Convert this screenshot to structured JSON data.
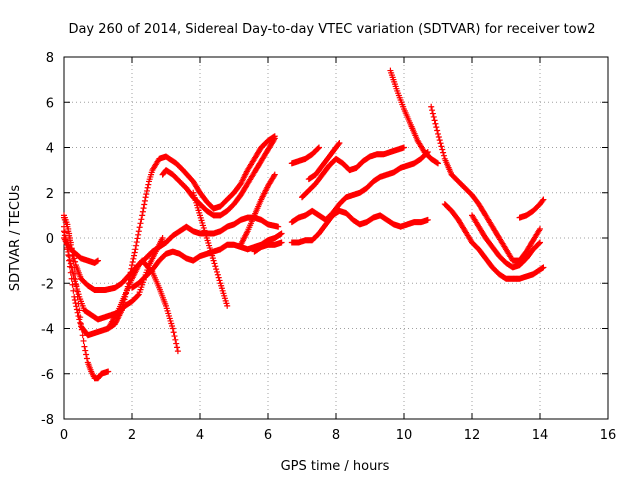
{
  "chart_data": {
    "type": "scatter",
    "title": "Day 260 of 2014, Sidereal Day-to-day VTEC variation (SDTVAR) for receiver tow2",
    "xlabel": "GPS time / hours",
    "ylabel": "SDTVAR / TECUs",
    "xlim": [
      0,
      16
    ],
    "ylim": [
      -8,
      8
    ],
    "xticks": [
      "0",
      "2",
      "4",
      "6",
      "8",
      "10",
      "12",
      "14",
      "16"
    ],
    "yticks": [
      "-8",
      "-6",
      "-4",
      "-2",
      "0",
      "2",
      "4",
      "6",
      "8"
    ],
    "grid": true,
    "marker": "+",
    "colors": {
      "series": "#ff0000",
      "grid": "#a0a0a0",
      "axis": "#000000"
    },
    "series": [
      {
        "x": [
          0.0,
          0.1,
          0.2,
          0.35,
          0.5,
          0.7,
          0.9,
          1.0
        ],
        "y": [
          0.0,
          -0.3,
          -0.5,
          -0.7,
          -0.9,
          -1.0,
          -1.1,
          -1.0
        ]
      },
      {
        "x": [
          0.0,
          0.1,
          0.2,
          0.3,
          0.4,
          0.5,
          0.6,
          0.7,
          0.8,
          0.9,
          1.0,
          1.1,
          1.3
        ],
        "y": [
          1.0,
          0.6,
          -0.2,
          -1.3,
          -2.6,
          -3.8,
          -4.8,
          -5.5,
          -5.9,
          -6.2,
          -6.2,
          -6.0,
          -5.9
        ]
      },
      {
        "x": [
          0.0,
          0.1,
          0.2,
          0.35,
          0.5,
          0.7,
          0.9,
          1.2,
          1.5,
          1.7,
          2.0,
          2.3,
          2.6,
          2.8,
          3.0,
          3.2,
          3.35
        ],
        "y": [
          0.9,
          0.5,
          -0.3,
          -1.2,
          -1.8,
          -2.1,
          -2.3,
          -2.3,
          -2.2,
          -2.0,
          -1.5,
          -1.0,
          -1.5,
          -2.2,
          -3.0,
          -4.0,
          -5.0
        ]
      },
      {
        "x": [
          0.0,
          0.15,
          0.3,
          0.45,
          0.6,
          0.8,
          1.0,
          1.2,
          1.4,
          1.6,
          1.8,
          2.0,
          2.2,
          2.5,
          2.9
        ],
        "y": [
          0.3,
          -0.8,
          -1.8,
          -2.6,
          -3.2,
          -3.4,
          -3.6,
          -3.5,
          -3.4,
          -3.3,
          -3.0,
          -2.8,
          -2.5,
          -1.2,
          0.0
        ]
      },
      {
        "x": [
          0.0,
          0.15,
          0.3,
          0.4,
          0.5,
          0.7,
          0.9,
          1.1,
          1.3,
          1.5,
          1.6,
          1.7,
          1.8,
          1.9,
          2.0,
          2.1,
          2.2,
          2.3,
          2.4,
          2.5,
          2.6,
          2.8,
          3.0,
          3.3,
          3.5,
          3.8,
          4.0,
          4.2,
          4.4,
          4.6,
          4.8,
          5.0,
          5.2,
          5.4,
          5.6,
          5.8,
          6.0,
          6.2
        ],
        "y": [
          0.5,
          -1.0,
          -2.6,
          -3.3,
          -3.9,
          -4.3,
          -4.2,
          -4.1,
          -4.0,
          -3.8,
          -3.5,
          -3.2,
          -2.6,
          -2.0,
          -1.2,
          -0.5,
          0.3,
          1.0,
          1.8,
          2.5,
          3.0,
          3.5,
          3.6,
          3.3,
          3.0,
          2.5,
          2.0,
          1.6,
          1.3,
          1.4,
          1.7,
          2.0,
          2.4,
          3.0,
          3.5,
          4.0,
          4.3,
          4.5
        ]
      },
      {
        "x": [
          1.3,
          1.6,
          1.8,
          2.0,
          2.2,
          2.4,
          2.6,
          2.8,
          3.0,
          3.2,
          3.4,
          3.6,
          3.8,
          4.0,
          4.2,
          4.4,
          4.6,
          4.8,
          5.0,
          5.2,
          5.4,
          5.6,
          5.8,
          6.0,
          6.3
        ],
        "y": [
          -4.0,
          -3.2,
          -2.5,
          -1.8,
          -1.2,
          -0.9,
          -0.6,
          -0.4,
          -0.2,
          0.1,
          0.3,
          0.5,
          0.3,
          0.2,
          0.2,
          0.2,
          0.3,
          0.5,
          0.6,
          0.8,
          0.9,
          0.9,
          0.8,
          0.6,
          0.5
        ]
      },
      {
        "x": [
          2.0,
          2.2,
          2.4,
          2.6,
          2.8,
          3.0,
          3.2,
          3.4,
          3.6,
          3.8,
          4.0,
          4.2,
          4.4,
          4.6,
          4.8,
          5.0,
          5.2,
          5.4,
          5.6,
          5.8,
          6.0,
          6.2,
          6.4
        ],
        "y": [
          -2.2,
          -2.0,
          -1.7,
          -1.4,
          -1.0,
          -0.7,
          -0.6,
          -0.7,
          -0.9,
          -1.0,
          -0.8,
          -0.7,
          -0.6,
          -0.5,
          -0.3,
          -0.3,
          -0.4,
          -0.5,
          -0.4,
          -0.3,
          -0.1,
          0.0,
          0.2
        ]
      },
      {
        "x": [
          2.9,
          3.0,
          3.2,
          3.4,
          3.6,
          3.8,
          4.0,
          4.2,
          4.4,
          4.6,
          4.8,
          5.0,
          5.2,
          5.4,
          5.6,
          5.8,
          6.0,
          6.2
        ],
        "y": [
          2.8,
          3.0,
          2.8,
          2.5,
          2.2,
          1.8,
          1.5,
          1.2,
          1.0,
          1.0,
          1.2,
          1.5,
          1.9,
          2.4,
          2.9,
          3.4,
          3.9,
          4.4
        ]
      },
      {
        "x": [
          3.8,
          4.0,
          4.2,
          4.4,
          4.6,
          4.8
        ],
        "y": [
          2.0,
          1.0,
          0.0,
          -1.0,
          -2.0,
          -3.0
        ]
      },
      {
        "x": [
          5.2,
          5.4,
          5.6,
          5.8,
          6.0,
          6.2
        ],
        "y": [
          -0.3,
          0.3,
          1.0,
          1.7,
          2.3,
          2.8
        ]
      },
      {
        "x": [
          5.6,
          5.8,
          6.0,
          6.2,
          6.4
        ],
        "y": [
          -0.6,
          -0.4,
          -0.3,
          -0.3,
          -0.2
        ]
      },
      {
        "x": [
          6.7,
          6.9,
          7.1,
          7.3,
          7.5
        ],
        "y": [
          3.3,
          3.4,
          3.5,
          3.7,
          4.0
        ]
      },
      {
        "x": [
          6.7,
          6.9,
          7.1,
          7.3,
          7.5,
          7.7,
          7.9,
          8.1,
          8.3,
          8.5,
          8.7,
          8.9,
          9.1,
          9.3,
          9.5,
          9.7,
          9.9,
          10.1,
          10.3,
          10.5,
          10.7
        ],
        "y": [
          -0.2,
          -0.2,
          -0.1,
          -0.1,
          0.2,
          0.6,
          1.0,
          1.2,
          1.1,
          0.8,
          0.6,
          0.7,
          0.9,
          1.0,
          0.8,
          0.6,
          0.5,
          0.6,
          0.7,
          0.7,
          0.8
        ]
      },
      {
        "x": [
          6.7,
          6.9,
          7.1,
          7.3,
          7.5,
          7.7,
          7.9,
          8.1,
          8.3,
          8.5,
          8.7,
          8.9,
          9.1,
          9.3,
          9.5,
          9.7,
          9.9,
          10.1,
          10.3,
          10.5,
          10.7
        ],
        "y": [
          0.7,
          0.9,
          1.0,
          1.2,
          1.0,
          0.8,
          1.1,
          1.5,
          1.8,
          1.9,
          2.0,
          2.2,
          2.5,
          2.7,
          2.8,
          2.9,
          3.1,
          3.2,
          3.3,
          3.5,
          3.8
        ]
      },
      {
        "x": [
          7.0,
          7.2,
          7.4,
          7.6,
          7.8,
          8.0,
          8.2,
          8.4,
          8.6,
          8.8,
          9.0,
          9.2,
          9.4,
          9.6,
          9.8,
          10.0
        ],
        "y": [
          1.8,
          2.1,
          2.4,
          2.8,
          3.2,
          3.5,
          3.3,
          3.0,
          3.1,
          3.4,
          3.6,
          3.7,
          3.7,
          3.8,
          3.9,
          4.0
        ]
      },
      {
        "x": [
          7.2,
          7.4,
          7.6,
          7.8,
          8.0,
          8.1
        ],
        "y": [
          2.6,
          2.8,
          3.2,
          3.6,
          4.0,
          4.2
        ]
      },
      {
        "x": [
          9.6,
          9.8,
          10.0,
          10.2,
          10.4,
          10.6,
          10.8,
          11.0
        ],
        "y": [
          7.4,
          6.5,
          5.7,
          5.0,
          4.3,
          3.8,
          3.5,
          3.3
        ]
      },
      {
        "x": [
          10.8,
          11.0,
          11.2,
          11.4,
          11.6,
          11.8,
          12.0,
          12.2,
          12.4,
          12.6,
          12.8,
          13.0,
          13.2,
          13.4,
          13.6,
          13.8,
          14.0
        ],
        "y": [
          5.8,
          4.6,
          3.5,
          2.8,
          2.5,
          2.2,
          1.9,
          1.5,
          1.0,
          0.5,
          0.0,
          -0.5,
          -1.0,
          -1.0,
          -0.6,
          -0.1,
          0.4
        ]
      },
      {
        "x": [
          11.2,
          11.4,
          11.6,
          11.8,
          12.0,
          12.2,
          12.4,
          12.6,
          12.8,
          13.0,
          13.2,
          13.4,
          13.6,
          13.8,
          14.0,
          14.1
        ],
        "y": [
          1.5,
          1.2,
          0.8,
          0.3,
          -0.2,
          -0.5,
          -0.9,
          -1.3,
          -1.6,
          -1.8,
          -1.8,
          -1.8,
          -1.7,
          -1.6,
          -1.4,
          -1.3
        ]
      },
      {
        "x": [
          12.0,
          12.2,
          12.4,
          12.6,
          12.8,
          13.0,
          13.2,
          13.4,
          13.6,
          13.8,
          14.0
        ],
        "y": [
          1.0,
          0.5,
          0.0,
          -0.4,
          -0.8,
          -1.1,
          -1.3,
          -1.2,
          -0.9,
          -0.5,
          -0.2
        ]
      },
      {
        "x": [
          13.4,
          13.6,
          13.8,
          14.0,
          14.1
        ],
        "y": [
          0.9,
          1.0,
          1.2,
          1.5,
          1.7
        ]
      }
    ]
  }
}
